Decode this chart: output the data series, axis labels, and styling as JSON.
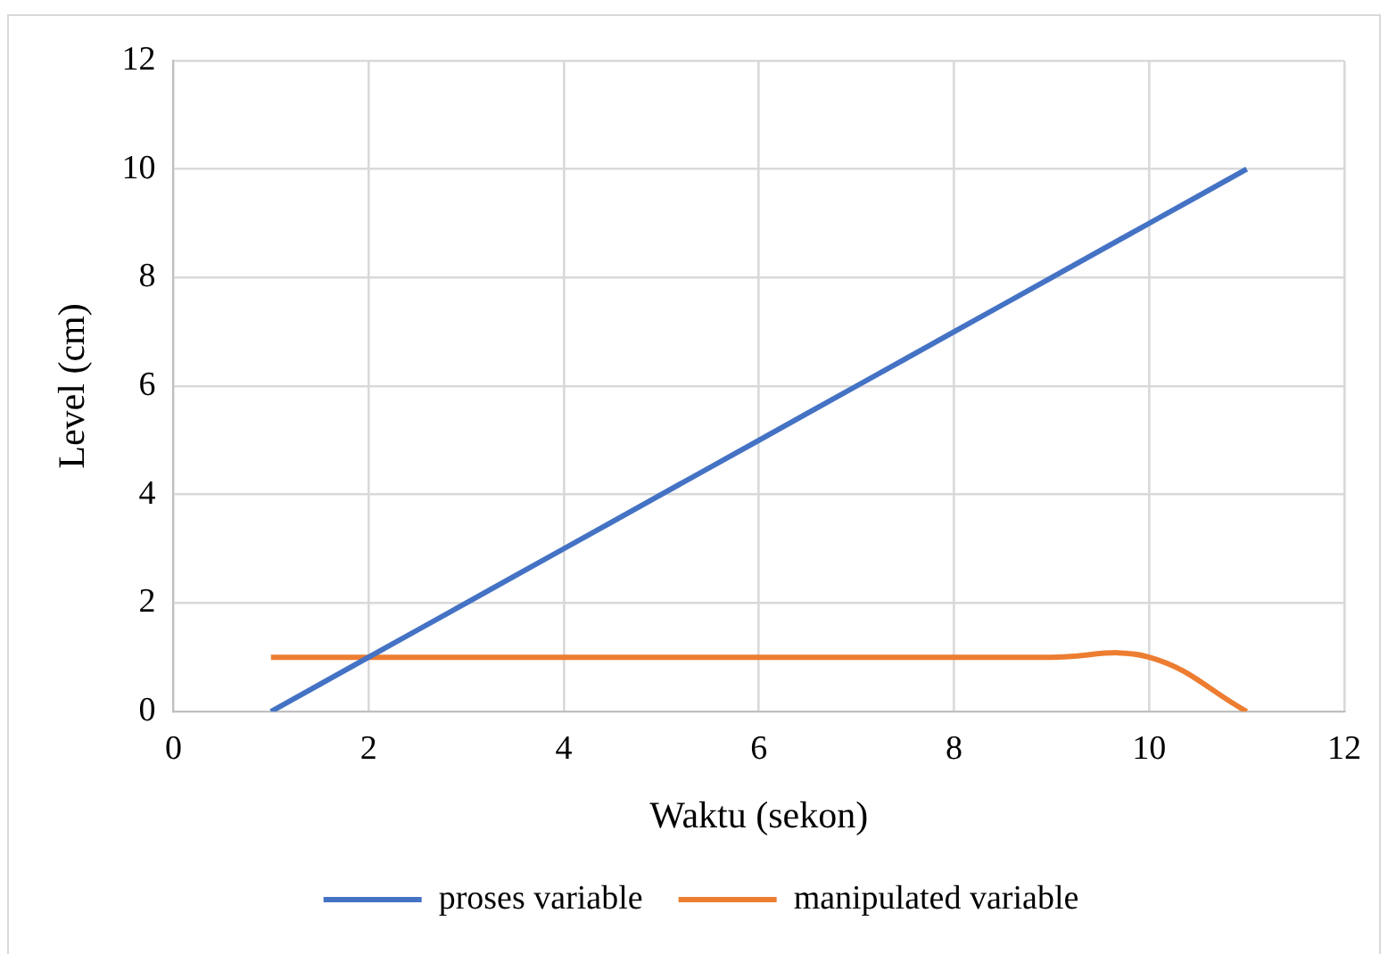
{
  "chart_data": {
    "type": "line",
    "xlabel": "Waktu (sekon)",
    "ylabel": "Level (cm)",
    "x": [
      1,
      2,
      3,
      4,
      5,
      6,
      7,
      8,
      9,
      10,
      11
    ],
    "series": [
      {
        "name": "proses variable",
        "color": "#4472c4",
        "values": [
          0,
          1,
          2,
          3,
          4,
          5,
          6,
          7,
          8,
          9,
          10
        ]
      },
      {
        "name": "manipulated variable",
        "color": "#ed7d31",
        "values": [
          1,
          1,
          1,
          1,
          1,
          1,
          1,
          1,
          1,
          1,
          0
        ]
      }
    ],
    "xlim": [
      0,
      12
    ],
    "xticks": [
      0,
      2,
      4,
      6,
      8,
      10,
      12
    ],
    "ylim": [
      0,
      12
    ],
    "yticks": [
      0,
      2,
      4,
      6,
      8,
      10,
      12
    ],
    "grid": true,
    "legend": "bottom",
    "marker": "none",
    "line_style": "solid"
  }
}
